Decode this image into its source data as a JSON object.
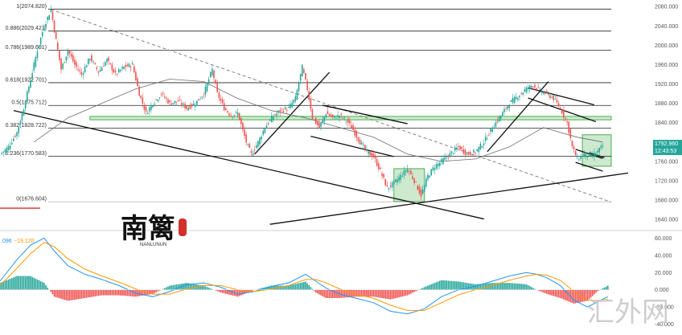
{
  "chart_data": [
    {
      "type": "candlestick",
      "instrument": "Gold",
      "y_axis": {
        "side": "right",
        "ticks": [
          "2080.000",
          "2040.000",
          "2000.000",
          "1960.000",
          "1920.000",
          "1880.000",
          "1840.000",
          "1800.000",
          "1760.000",
          "1720.000",
          "1680.000",
          "1640.000"
        ],
        "ylim": [
          1622,
          2087
        ]
      },
      "last_price": "1792.960",
      "countdown": "12:43:53",
      "fib_levels": [
        {
          "ratio": 1,
          "price": 2074.82,
          "label": "1(2074.820)"
        },
        {
          "ratio": 0.886,
          "price": 2029.423,
          "label": "0.886(2029.423)"
        },
        {
          "ratio": 0.786,
          "price": 1989.601,
          "label": "0.786(1989.601)"
        },
        {
          "ratio": 0.618,
          "price": 1922.701,
          "label": "0.618(1922.701)"
        },
        {
          "ratio": 0.5,
          "price": 1875.712,
          "label": "0.5(1875.712)"
        },
        {
          "ratio": 0.382,
          "price": 1828.722,
          "label": "0.382(1828.722)"
        },
        {
          "ratio": 0.236,
          "price": 1770.583,
          "label": "0.236(1770.583)"
        },
        {
          "ratio": 0,
          "price": 1676.604,
          "label": "0(1676.604)"
        }
      ],
      "price_path": [
        [
          0,
          1775
        ],
        [
          5,
          1790
        ],
        [
          10,
          1820
        ],
        [
          14,
          1870
        ],
        [
          18,
          1930
        ],
        [
          22,
          1990
        ],
        [
          26,
          2040
        ],
        [
          30,
          2074
        ],
        [
          33,
          2010
        ],
        [
          36,
          1950
        ],
        [
          40,
          1990
        ],
        [
          44,
          1960
        ],
        [
          48,
          1940
        ],
        [
          53,
          1975
        ],
        [
          58,
          1945
        ],
        [
          63,
          1970
        ],
        [
          68,
          1940
        ],
        [
          73,
          1955
        ],
        [
          78,
          1960
        ],
        [
          82,
          1900
        ],
        [
          86,
          1860
        ],
        [
          90,
          1880
        ],
        [
          95,
          1900
        ],
        [
          100,
          1880
        ],
        [
          105,
          1885
        ],
        [
          110,
          1870
        ],
        [
          115,
          1880
        ],
        [
          120,
          1900
        ],
        [
          125,
          1950
        ],
        [
          128,
          1900
        ],
        [
          132,
          1870
        ],
        [
          136,
          1855
        ],
        [
          140,
          1860
        ],
        [
          145,
          1800
        ],
        [
          148,
          1775
        ],
        [
          152,
          1800
        ],
        [
          156,
          1830
        ],
        [
          160,
          1850
        ],
        [
          165,
          1865
        ],
        [
          170,
          1870
        ],
        [
          174,
          1890
        ],
        [
          178,
          1955
        ],
        [
          181,
          1910
        ],
        [
          184,
          1850
        ],
        [
          188,
          1830
        ],
        [
          192,
          1860
        ],
        [
          196,
          1850
        ],
        [
          200,
          1855
        ],
        [
          204,
          1845
        ],
        [
          208,
          1825
        ],
        [
          212,
          1800
        ],
        [
          216,
          1780
        ],
        [
          220,
          1770
        ],
        [
          224,
          1740
        ],
        [
          228,
          1705
        ],
        [
          232,
          1715
        ],
        [
          236,
          1730
        ],
        [
          240,
          1745
        ],
        [
          244,
          1720
        ],
        [
          248,
          1690
        ],
        [
          252,
          1730
        ],
        [
          256,
          1750
        ],
        [
          260,
          1760
        ],
        [
          265,
          1775
        ],
        [
          270,
          1790
        ],
        [
          275,
          1775
        ],
        [
          280,
          1780
        ],
        [
          285,
          1800
        ],
        [
          290,
          1830
        ],
        [
          295,
          1855
        ],
        [
          300,
          1880
        ],
        [
          305,
          1895
        ],
        [
          310,
          1910
        ],
        [
          314,
          1918
        ],
        [
          318,
          1905
        ],
        [
          322,
          1900
        ],
        [
          326,
          1890
        ],
        [
          330,
          1870
        ],
        [
          334,
          1840
        ],
        [
          337,
          1790
        ],
        [
          340,
          1765
        ],
        [
          344,
          1775
        ],
        [
          348,
          1770
        ],
        [
          352,
          1780
        ],
        [
          355,
          1792
        ]
      ],
      "moving_average": [
        [
          20,
          1800
        ],
        [
          40,
          1850
        ],
        [
          60,
          1880
        ],
        [
          80,
          1910
        ],
        [
          100,
          1930
        ],
        [
          120,
          1925
        ],
        [
          140,
          1890
        ],
        [
          160,
          1865
        ],
        [
          180,
          1850
        ],
        [
          200,
          1830
        ],
        [
          220,
          1810
        ],
        [
          240,
          1775
        ],
        [
          260,
          1760
        ],
        [
          280,
          1765
        ],
        [
          300,
          1790
        ],
        [
          320,
          1830
        ],
        [
          340,
          1810
        ],
        [
          355,
          1800
        ]
      ],
      "trendlines": [
        {
          "from": [
            30,
            2074
          ],
          "to": [
            360,
            1676
          ]
        },
        {
          "from": [
            8,
            1865
          ],
          "to": [
            285,
            1641
          ]
        },
        {
          "from": [
            150,
            1775
          ],
          "to": [
            194,
            1944
          ]
        },
        {
          "from": [
            190,
            1876
          ],
          "to": [
            240,
            1838
          ]
        },
        {
          "from": [
            183,
            1812
          ],
          "to": [
            232,
            1770
          ]
        },
        {
          "from": [
            287,
            1780
          ],
          "to": [
            323,
            1925
          ]
        },
        {
          "from": [
            311,
            1912
          ],
          "to": [
            350,
            1877
          ]
        },
        {
          "from": [
            311,
            1891
          ],
          "to": [
            351,
            1842
          ]
        },
        {
          "from": [
            339,
            1785
          ],
          "to": [
            355,
            1766
          ]
        },
        {
          "from": [
            339,
            1758
          ],
          "to": [
            355,
            1740
          ]
        },
        {
          "from": [
            347,
            1778
          ],
          "to": [
            356,
            1768
          ]
        },
        {
          "from": [
            159,
            1630
          ],
          "to": [
            370,
            1736
          ]
        }
      ],
      "zones": [
        {
          "kind": "band",
          "x_range": [
            53,
            360
          ],
          "price_range": [
            1846,
            1853
          ]
        },
        {
          "kind": "box",
          "x_range": [
            232,
            250
          ],
          "price_range": [
            1677,
            1745
          ]
        },
        {
          "kind": "box",
          "x_range": [
            343,
            360
          ],
          "price_range": [
            1750,
            1815
          ]
        }
      ]
    },
    {
      "type": "macd",
      "header": [
        ".096",
        "−19.120"
      ],
      "y_axis": {
        "ticks": [
          "60.000",
          "40.000",
          "20.000",
          "0.000",
          "-20.000",
          "-40.000"
        ],
        "ylim": [
          -46,
          66
        ]
      },
      "fast_line_color": "#2196f3",
      "slow_line_color": "#ff9800",
      "hist_pos_color": "#26a69a",
      "hist_neg_color": "#ef5350",
      "macd_path": [
        [
          0,
          10
        ],
        [
          10,
          35
        ],
        [
          18,
          52
        ],
        [
          26,
          60
        ],
        [
          32,
          45
        ],
        [
          40,
          28
        ],
        [
          50,
          18
        ],
        [
          60,
          12
        ],
        [
          70,
          5
        ],
        [
          80,
          -4
        ],
        [
          90,
          -8
        ],
        [
          100,
          -2
        ],
        [
          110,
          6
        ],
        [
          120,
          8
        ],
        [
          130,
          3
        ],
        [
          140,
          -5
        ],
        [
          150,
          -2
        ],
        [
          160,
          4
        ],
        [
          170,
          8
        ],
        [
          180,
          18
        ],
        [
          186,
          10
        ],
        [
          192,
          2
        ],
        [
          200,
          -5
        ],
        [
          210,
          -10
        ],
        [
          220,
          -15
        ],
        [
          230,
          -25
        ],
        [
          240,
          -28
        ],
        [
          250,
          -22
        ],
        [
          260,
          -8
        ],
        [
          270,
          0
        ],
        [
          280,
          4
        ],
        [
          290,
          10
        ],
        [
          300,
          16
        ],
        [
          310,
          20
        ],
        [
          316,
          18
        ],
        [
          322,
          14
        ],
        [
          330,
          5
        ],
        [
          338,
          -12
        ],
        [
          346,
          -20
        ],
        [
          352,
          -14
        ],
        [
          358,
          -8
        ]
      ],
      "signal_path": [
        [
          0,
          5
        ],
        [
          10,
          25
        ],
        [
          18,
          42
        ],
        [
          26,
          55
        ],
        [
          32,
          50
        ],
        [
          40,
          36
        ],
        [
          50,
          24
        ],
        [
          60,
          16
        ],
        [
          70,
          9
        ],
        [
          80,
          1
        ],
        [
          90,
          -5
        ],
        [
          100,
          -5
        ],
        [
          110,
          1
        ],
        [
          120,
          5
        ],
        [
          130,
          5
        ],
        [
          140,
          0
        ],
        [
          150,
          -2
        ],
        [
          160,
          1
        ],
        [
          170,
          5
        ],
        [
          180,
          12
        ],
        [
          186,
          12
        ],
        [
          192,
          8
        ],
        [
          200,
          1
        ],
        [
          210,
          -5
        ],
        [
          220,
          -10
        ],
        [
          230,
          -18
        ],
        [
          240,
          -24
        ],
        [
          250,
          -24
        ],
        [
          260,
          -15
        ],
        [
          270,
          -6
        ],
        [
          280,
          0
        ],
        [
          290,
          5
        ],
        [
          300,
          11
        ],
        [
          310,
          16
        ],
        [
          316,
          18
        ],
        [
          322,
          17
        ],
        [
          330,
          11
        ],
        [
          338,
          -2
        ],
        [
          346,
          -12
        ],
        [
          352,
          -13
        ],
        [
          358,
          -11
        ]
      ]
    }
  ],
  "branding": {
    "logo_title": "南篱",
    "logo_subtitle": "NANLUNUN",
    "watermark": "汇外网"
  }
}
